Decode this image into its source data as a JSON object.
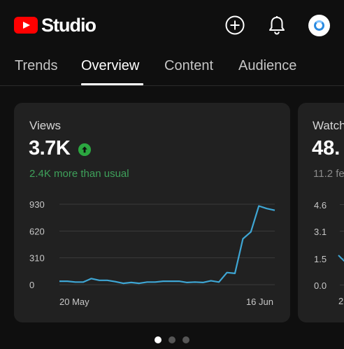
{
  "header": {
    "logo_text": "Studio",
    "icons": [
      "youtube-logo-icon",
      "create-icon",
      "bell-icon",
      "avatar"
    ]
  },
  "tabs": [
    {
      "label": "Trends",
      "active": false
    },
    {
      "label": "Overview",
      "active": true
    },
    {
      "label": "Content",
      "active": false
    },
    {
      "label": "Audience",
      "active": false
    }
  ],
  "cards": {
    "views": {
      "title": "Views",
      "value": "3.7K",
      "subtitle": "2.4K more than usual",
      "trend": "up",
      "chart_color": "#3ea6d4"
    },
    "watch_time": {
      "title": "Watch",
      "value": "48.",
      "subtitle": "11.2 fe",
      "y_ticks": [
        "4.6",
        "3.1",
        "1.5",
        "0.0"
      ],
      "x_tick": "2"
    }
  },
  "chart_data": {
    "type": "line",
    "x": [
      "20 May",
      "21 May",
      "22 May",
      "23 May",
      "24 May",
      "25 May",
      "26 May",
      "27 May",
      "28 May",
      "29 May",
      "30 May",
      "31 May",
      "1 Jun",
      "2 Jun",
      "3 Jun",
      "4 Jun",
      "5 Jun",
      "6 Jun",
      "7 Jun",
      "8 Jun",
      "9 Jun",
      "10 Jun",
      "11 Jun",
      "12 Jun",
      "13 Jun",
      "14 Jun",
      "15 Jun",
      "16 Jun"
    ],
    "series": [
      {
        "values": [
          40,
          40,
          30,
          30,
          70,
          50,
          50,
          35,
          15,
          25,
          15,
          30,
          30,
          40,
          40,
          40,
          25,
          30,
          25,
          45,
          30,
          140,
          130,
          530,
          610,
          910,
          880,
          860
        ]
      }
    ],
    "x_tick_labels": [
      "20 May",
      "16 Jun"
    ],
    "y_ticks": [
      "930",
      "620",
      "310",
      "0"
    ],
    "ylim": [
      0,
      930
    ],
    "grid": true,
    "legend": false
  },
  "pagination": {
    "count": 3,
    "active_index": 0
  }
}
